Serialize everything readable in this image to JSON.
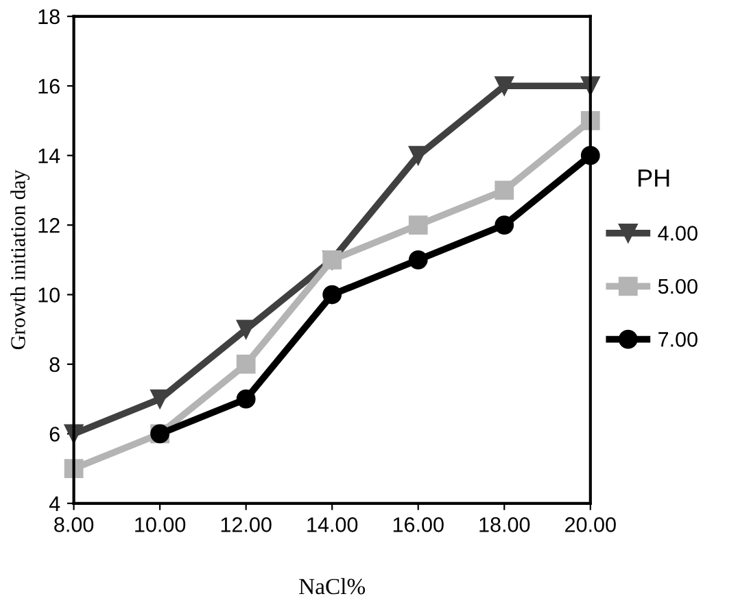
{
  "chart_data": {
    "type": "line",
    "xlabel": "NaCl%",
    "ylabel": "Growth initiation day",
    "legend_title": "PH",
    "x": [
      8,
      10,
      12,
      14,
      16,
      18,
      20
    ],
    "xlim": [
      8,
      20
    ],
    "xticks": [
      {
        "value": 8,
        "label": "8.00"
      },
      {
        "value": 10,
        "label": "10.00"
      },
      {
        "value": 12,
        "label": "12.00"
      },
      {
        "value": 14,
        "label": "14.00"
      },
      {
        "value": 16,
        "label": "16.00"
      },
      {
        "value": 18,
        "label": "18.00"
      },
      {
        "value": 20,
        "label": "20.00"
      }
    ],
    "ylim": [
      4,
      18
    ],
    "yticks": [
      4,
      6,
      8,
      10,
      12,
      14,
      16,
      18
    ],
    "grid": false,
    "legend": "right",
    "line_style": "solid",
    "series": [
      {
        "name": "4.00",
        "color": "#404040",
        "marker": "triangle",
        "values": [
          6,
          7,
          9,
          11,
          14,
          16,
          16
        ]
      },
      {
        "name": "5.00",
        "color": "#b4b4b4",
        "marker": "square",
        "values": [
          5,
          6,
          8,
          11,
          12,
          13,
          15
        ]
      },
      {
        "name": "7.00",
        "color": "#000000",
        "marker": "circle",
        "values": [
          null,
          6,
          7,
          10,
          11,
          12,
          14
        ]
      }
    ]
  }
}
